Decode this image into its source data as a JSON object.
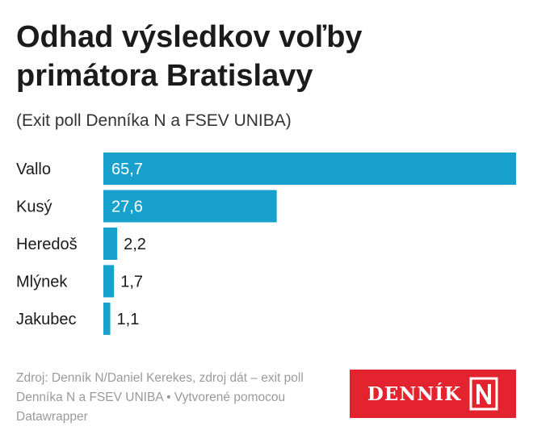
{
  "header": {
    "title": "Odhad výsledkov voľby primátora Bratislavy",
    "subtitle": "(Exit poll Denníka N a FSEV UNIBA)"
  },
  "footer": {
    "source": "Zdroj: Denník N/Daniel Kerekes, zdroj dát – exit poll Denníka N a FSEV UNIBA • Vytvorené pomocou Datawrapper"
  },
  "logo": {
    "text": "DENNÍK",
    "mark": "N"
  },
  "colors": {
    "bar": "#18a1cd",
    "logo_bg": "#e3232e"
  },
  "chart_data": {
    "type": "bar",
    "orientation": "horizontal",
    "title": "Odhad výsledkov voľby primátora Bratislavy",
    "subtitle": "(Exit poll Denníka N a FSEV UNIBA)",
    "categories": [
      "Vallo",
      "Kusý",
      "Heredoš",
      "Mlýnek",
      "Jakubec"
    ],
    "values": [
      65.7,
      27.6,
      2.2,
      1.7,
      1.1
    ],
    "labels": [
      "65,7",
      "27,6",
      "2,2",
      "1,7",
      "1,1"
    ],
    "xlim": [
      0,
      65.7
    ],
    "grid": false,
    "legend": "none"
  }
}
